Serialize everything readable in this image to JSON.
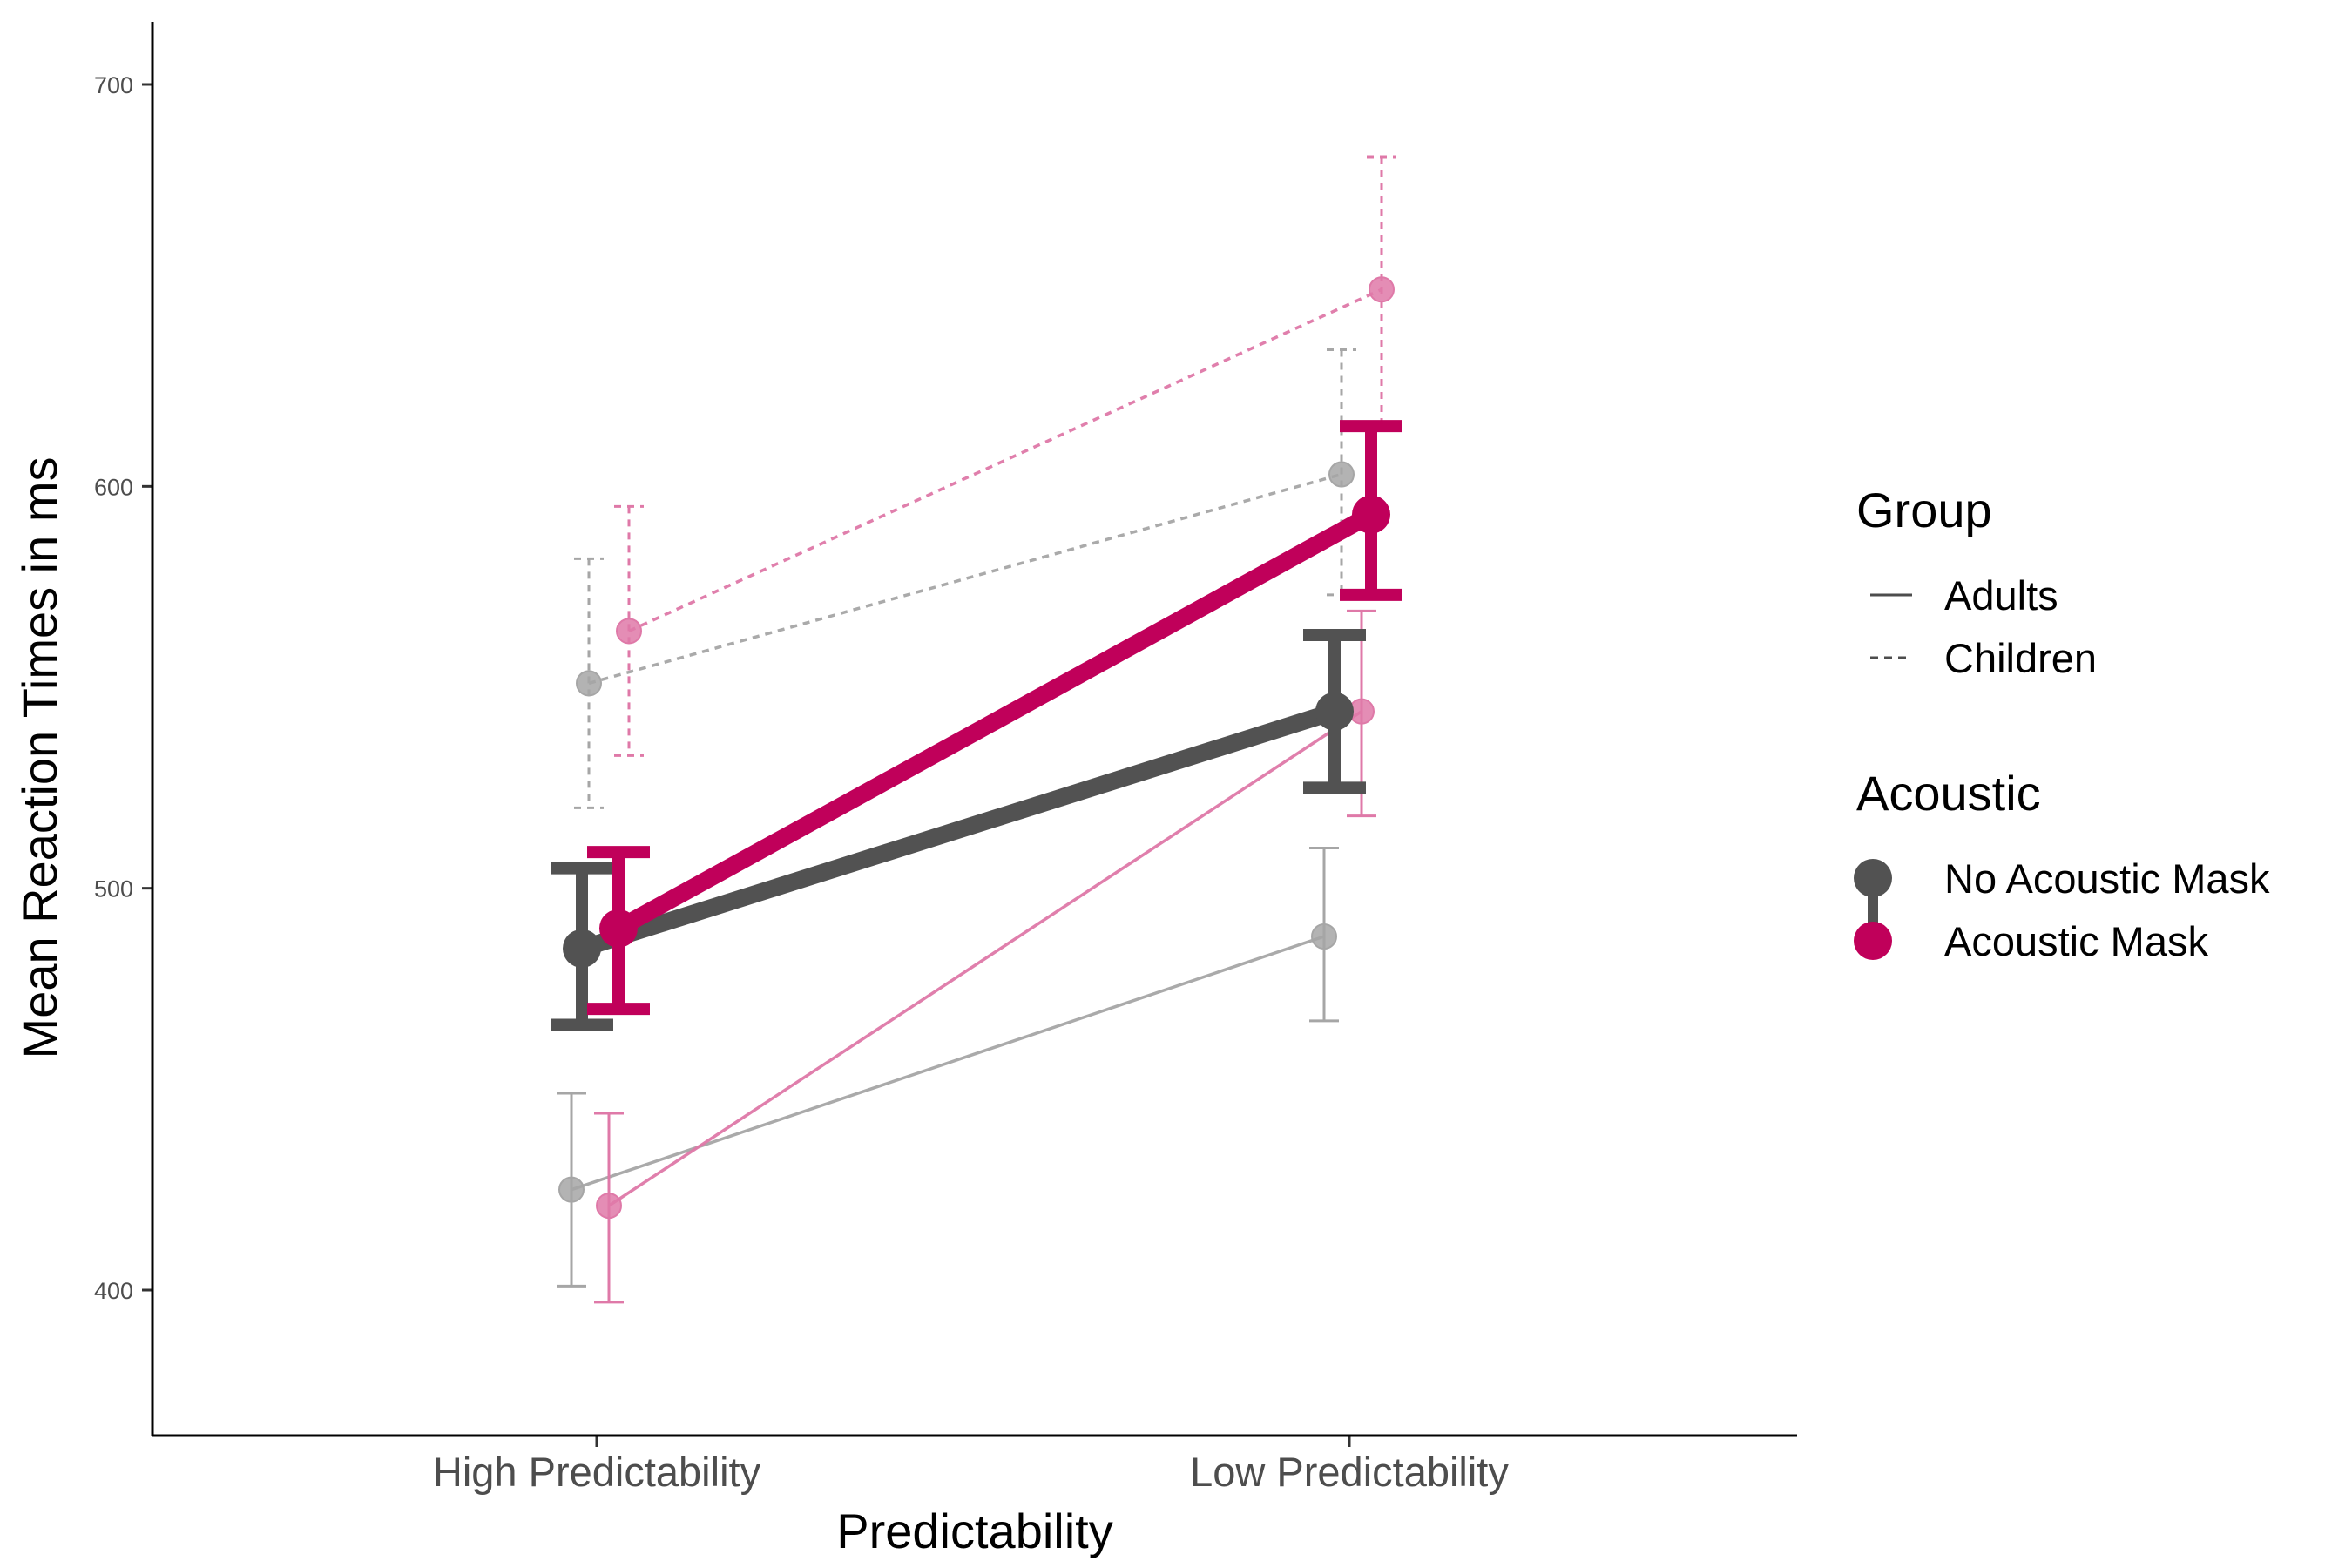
{
  "chart_data": {
    "type": "line",
    "title": "",
    "xlabel": "Predictability",
    "ylabel": "Mean Reaction Times in ms",
    "categories": [
      "High Predictability",
      "Low Predictability"
    ],
    "y_ticks": [
      400,
      500,
      600,
      700
    ],
    "ylim": [
      364,
      717
    ],
    "grid": false,
    "legend_position": "right",
    "series": [
      {
        "name": "No Acoustic Mask - Adults",
        "acoustic": "No Acoustic Mask",
        "group": "Adults",
        "color": "#a6a6a6",
        "style": "solid",
        "weight": "thin",
        "values": [
          425,
          488
        ],
        "lower": [
          401,
          467
        ],
        "upper": [
          449,
          510
        ]
      },
      {
        "name": "Acoustic Mask - Adults",
        "acoustic": "Acoustic Mask",
        "group": "Adults",
        "color": "#df79a8",
        "style": "solid",
        "weight": "thin",
        "values": [
          421,
          544
        ],
        "lower": [
          397,
          518
        ],
        "upper": [
          444,
          569
        ]
      },
      {
        "name": "No Acoustic Mask - Children",
        "acoustic": "No Acoustic Mask",
        "group": "Children",
        "color": "#a6a6a6",
        "style": "dashed",
        "weight": "thin",
        "values": [
          551,
          603
        ],
        "lower": [
          520,
          573
        ],
        "upper": [
          582,
          634
        ]
      },
      {
        "name": "Acoustic Mask - Children",
        "acoustic": "Acoustic Mask",
        "group": "Children",
        "color": "#df79a8",
        "style": "dashed",
        "weight": "thin",
        "values": [
          564,
          649
        ],
        "lower": [
          533,
          616
        ],
        "upper": [
          595,
          682
        ]
      },
      {
        "name": "No Acoustic Mask - Overall",
        "acoustic": "No Acoustic Mask",
        "color": "#525252",
        "style": "solid",
        "weight": "thick",
        "values": [
          485,
          544
        ],
        "lower": [
          466,
          525
        ],
        "upper": [
          505,
          563
        ]
      },
      {
        "name": "Acoustic Mask - Overall",
        "acoustic": "Acoustic Mask",
        "color": "#c0005a",
        "style": "solid",
        "weight": "thick",
        "values": [
          490,
          593
        ],
        "lower": [
          470,
          573
        ],
        "upper": [
          509,
          615
        ]
      }
    ],
    "legend": {
      "group_title": "Group",
      "group_items": [
        {
          "label": "Adults",
          "style": "solid"
        },
        {
          "label": "Children",
          "style": "dashed"
        }
      ],
      "acoustic_title": "Acoustic",
      "acoustic_items": [
        {
          "label": "No Acoustic Mask",
          "color": "#525252"
        },
        {
          "label": "Acoustic Mask",
          "color": "#c0005a"
        }
      ]
    }
  }
}
